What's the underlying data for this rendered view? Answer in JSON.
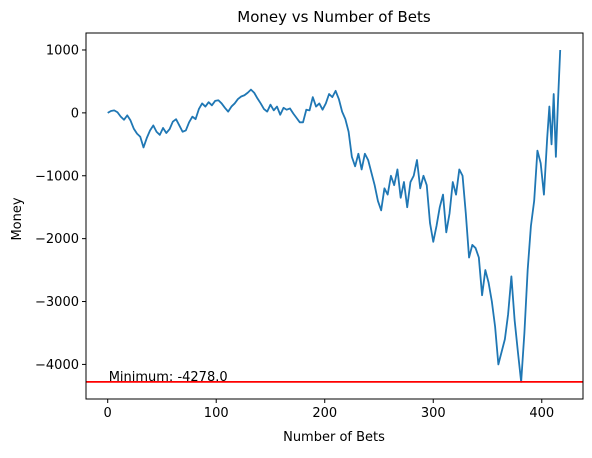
{
  "chart_data": {
    "type": "line",
    "title": "Money vs Number of Bets",
    "xlabel": "Number of Bets",
    "ylabel": "Money",
    "xlim": [
      -20,
      438
    ],
    "ylim": [
      -4550,
      1270
    ],
    "xticks": [
      0,
      100,
      200,
      300,
      400
    ],
    "xtick_labels": [
      "0",
      "100",
      "200",
      "300",
      "400"
    ],
    "yticks": [
      -4000,
      -3000,
      -2000,
      -1000,
      0,
      1000
    ],
    "ytick_labels": [
      "−4000",
      "−3000",
      "−2000",
      "−1000",
      "0",
      "1000"
    ],
    "grid": false,
    "series": [
      {
        "color": "#1f77b4",
        "x": [
          0,
          3,
          6,
          9,
          12,
          15,
          18,
          21,
          24,
          27,
          30,
          33,
          36,
          39,
          42,
          45,
          48,
          51,
          54,
          57,
          60,
          63,
          66,
          69,
          72,
          75,
          78,
          81,
          84,
          87,
          90,
          93,
          96,
          99,
          102,
          105,
          108,
          111,
          114,
          117,
          120,
          123,
          126,
          129,
          132,
          135,
          138,
          141,
          144,
          147,
          150,
          153,
          156,
          159,
          162,
          165,
          168,
          171,
          174,
          177,
          180,
          183,
          186,
          189,
          192,
          195,
          198,
          201,
          204,
          207,
          210,
          213,
          216,
          219,
          222,
          225,
          228,
          231,
          234,
          237,
          240,
          243,
          246,
          249,
          252,
          255,
          258,
          261,
          264,
          267,
          270,
          273,
          276,
          279,
          282,
          285,
          288,
          291,
          294,
          297,
          300,
          303,
          306,
          309,
          312,
          315,
          318,
          321,
          324,
          327,
          330,
          333,
          336,
          339,
          342,
          345,
          348,
          351,
          354,
          357,
          360,
          363,
          366,
          369,
          372,
          375,
          378,
          381,
          384,
          387,
          390,
          393,
          396,
          399,
          402,
          405,
          407,
          409,
          411,
          413,
          415,
          417
        ],
        "y": [
          0,
          30,
          40,
          10,
          -60,
          -110,
          -40,
          -120,
          -250,
          -330,
          -380,
          -550,
          -400,
          -280,
          -200,
          -300,
          -350,
          -240,
          -320,
          -260,
          -140,
          -100,
          -200,
          -300,
          -280,
          -150,
          -60,
          -100,
          60,
          150,
          100,
          170,
          120,
          190,
          200,
          150,
          80,
          20,
          100,
          150,
          220,
          260,
          280,
          320,
          370,
          320,
          230,
          150,
          60,
          20,
          130,
          40,
          100,
          -30,
          80,
          50,
          70,
          -10,
          -80,
          -150,
          -150,
          50,
          40,
          250,
          100,
          150,
          50,
          150,
          300,
          250,
          350,
          220,
          20,
          -100,
          -300,
          -700,
          -850,
          -650,
          -900,
          -650,
          -750,
          -950,
          -1150,
          -1400,
          -1550,
          -1200,
          -1300,
          -1000,
          -1150,
          -900,
          -1350,
          -1100,
          -1500,
          -1100,
          -1000,
          -750,
          -1200,
          -1000,
          -1150,
          -1750,
          -2050,
          -1800,
          -1500,
          -1300,
          -1900,
          -1600,
          -1100,
          -1300,
          -900,
          -1000,
          -1600,
          -2300,
          -2100,
          -2150,
          -2300,
          -2900,
          -2500,
          -2700,
          -3000,
          -3400,
          -4000,
          -3800,
          -3600,
          -3200,
          -2600,
          -3300,
          -3800,
          -4278,
          -3500,
          -2500,
          -1800,
          -1400,
          -600,
          -800,
          -1300,
          -400,
          100,
          -500,
          300,
          -700,
          200,
          1000
        ]
      }
    ],
    "hlines": [
      {
        "y": -4278.0,
        "color": "#ff0000"
      }
    ],
    "annotations": [
      {
        "text": "Minimum: -4278.0",
        "x": 0,
        "y": -4278.0
      }
    ]
  }
}
